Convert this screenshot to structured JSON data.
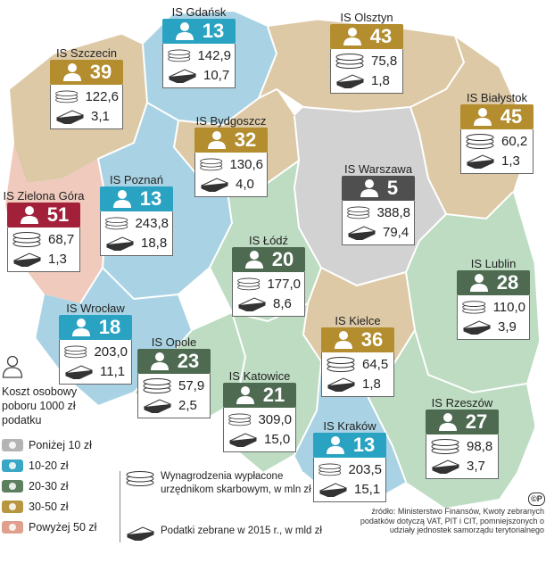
{
  "legend": {
    "title": "Koszt osobowy poboru 1000 zł podatku",
    "ranges": [
      {
        "label": "Poniżej 10 zł",
        "color": "#b4b4b4"
      },
      {
        "label": "10-20 zł",
        "color": "#3aa7c4"
      },
      {
        "label": "20-30 zł",
        "color": "#5b7f5f"
      },
      {
        "label": "30-50 zł",
        "color": "#b89540"
      },
      {
        "label": "Powyżej 50 zł",
        "color": "#e0a08e"
      }
    ],
    "icons": {
      "salaries": "Wynagrodzenia wypłacone urzędnikom skarbowym, w mln zł",
      "taxes": "Podatki zebrane w 2015 r., w mld zł"
    }
  },
  "source": "źródło: Ministerstwo Finansów, Kwoty zebranych podatków dotyczą VAT, PIT i CIT, pomniejszonych o udziały jednostek samorządu terytorialnego",
  "copyright_mark": "©P",
  "offices": [
    {
      "name": "IS Gdańsk",
      "cost": "13",
      "salaries": "142,9",
      "taxes": "10,7",
      "color": "#2aa3c2"
    },
    {
      "name": "IS Olsztyn",
      "cost": "43",
      "salaries": "75,8",
      "taxes": "1,8",
      "color": "#b38d2e"
    },
    {
      "name": "IS Szczecin",
      "cost": "39",
      "salaries": "122,6",
      "taxes": "3,1",
      "color": "#b38d2e"
    },
    {
      "name": "IS Białystok",
      "cost": "45",
      "salaries": "60,2",
      "taxes": "1,3",
      "color": "#b38d2e"
    },
    {
      "name": "IS Bydgoszcz",
      "cost": "32",
      "salaries": "130,6",
      "taxes": "4,0",
      "color": "#b38d2e"
    },
    {
      "name": "IS Warszawa",
      "cost": "5",
      "salaries": "388,8",
      "taxes": "79,4",
      "color": "#4f4f4f"
    },
    {
      "name": "IS Zielona Góra",
      "cost": "51",
      "salaries": "68,7",
      "taxes": "1,3",
      "color": "#a3203a"
    },
    {
      "name": "IS Poznań",
      "cost": "13",
      "salaries": "243,8",
      "taxes": "18,8",
      "color": "#2aa3c2"
    },
    {
      "name": "IS Łódź",
      "cost": "20",
      "salaries": "177,0",
      "taxes": "8,6",
      "color": "#4e6b52"
    },
    {
      "name": "IS Lublin",
      "cost": "28",
      "salaries": "110,0",
      "taxes": "3,9",
      "color": "#4e6b52"
    },
    {
      "name": "IS Wrocław",
      "cost": "18",
      "salaries": "203,0",
      "taxes": "11,1",
      "color": "#2aa3c2"
    },
    {
      "name": "IS Kielce",
      "cost": "36",
      "salaries": "64,5",
      "taxes": "1,8",
      "color": "#b38d2e"
    },
    {
      "name": "IS Opole",
      "cost": "23",
      "salaries": "57,9",
      "taxes": "2,5",
      "color": "#4e6b52"
    },
    {
      "name": "IS Katowice",
      "cost": "21",
      "salaries": "309,0",
      "taxes": "15,0",
      "color": "#4e6b52"
    },
    {
      "name": "IS Rzeszów",
      "cost": "27",
      "salaries": "98,8",
      "taxes": "3,7",
      "color": "#4e6b52"
    },
    {
      "name": "IS Kraków",
      "cost": "13",
      "salaries": "203,5",
      "taxes": "15,1",
      "color": "#2aa3c2"
    }
  ]
}
